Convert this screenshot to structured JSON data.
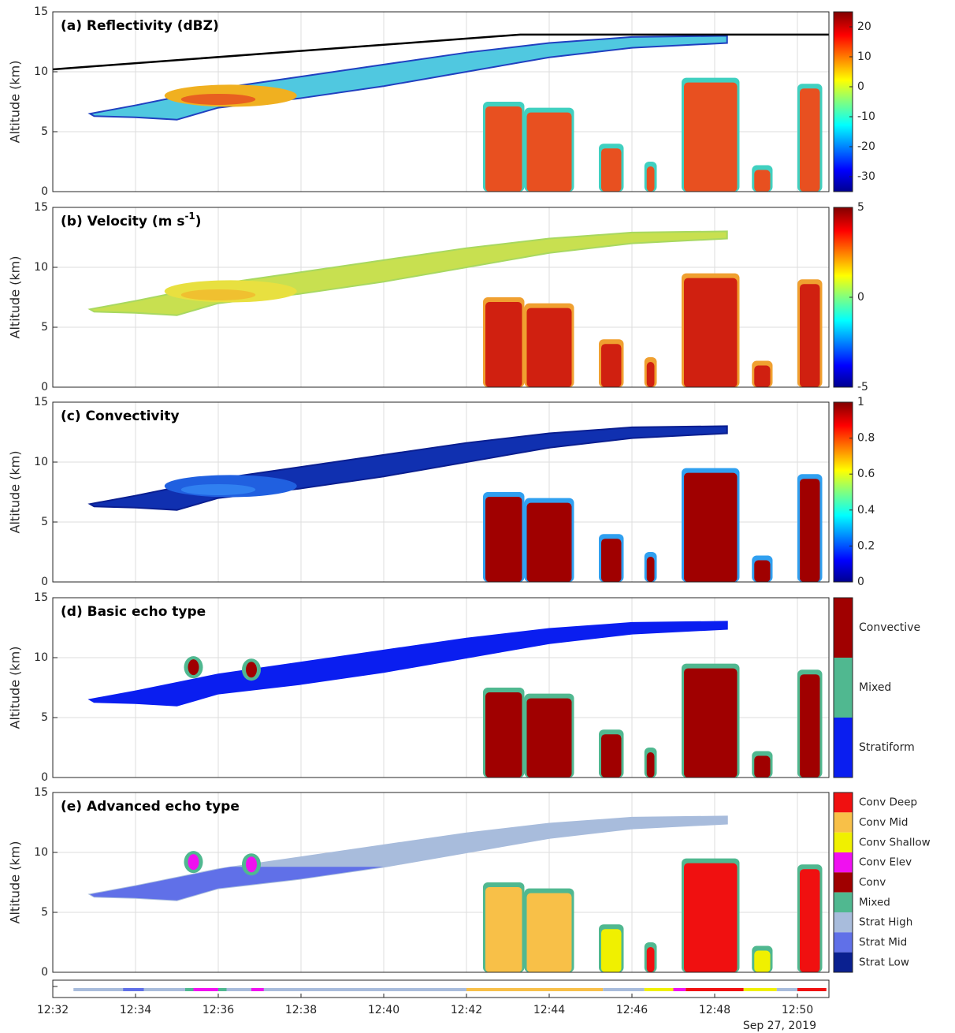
{
  "chart_data": [
    {
      "type": "heatmap",
      "title": "(a) Reflectivity (dBZ)",
      "ylabel": "Altitude (km)",
      "ylim": [
        0,
        15
      ],
      "yticks": [
        0,
        5,
        10,
        15
      ],
      "grid": true,
      "colorbar": {
        "colormap": "jet",
        "clim": [
          -35,
          25
        ],
        "ticks": [
          -30,
          -20,
          -10,
          0,
          10,
          20
        ]
      }
    },
    {
      "type": "heatmap",
      "title": "(b) Velocity (m s",
      "title_superscript": "-1",
      "title_suffix": ")",
      "ylabel": "Altitude (km)",
      "ylim": [
        0,
        15
      ],
      "yticks": [
        0,
        5,
        10,
        15
      ],
      "grid": true,
      "colorbar": {
        "colormap": "jet",
        "clim": [
          -5,
          5
        ],
        "ticks": [
          -5,
          0,
          5
        ]
      }
    },
    {
      "type": "heatmap",
      "title": "(c) Convectivity",
      "ylabel": "Altitude (km)",
      "ylim": [
        0,
        15
      ],
      "yticks": [
        0,
        5,
        10,
        15
      ],
      "grid": true,
      "colorbar": {
        "colormap": "jet",
        "clim": [
          0,
          1
        ],
        "ticks": [
          0,
          0.2,
          0.4,
          0.6,
          0.8,
          1
        ]
      }
    },
    {
      "type": "heatmap",
      "title": "(d) Basic echo type",
      "ylabel": "Altitude (km)",
      "ylim": [
        0,
        15
      ],
      "yticks": [
        0,
        5,
        10,
        15
      ],
      "grid": true,
      "classes": [
        {
          "name": "Convective",
          "color": "#a00000"
        },
        {
          "name": "Mixed",
          "color": "#50b890"
        },
        {
          "name": "Stratiform",
          "color": "#0a1ef0"
        }
      ]
    },
    {
      "type": "heatmap",
      "title": "(e) Advanced echo type",
      "ylabel": "Altitude (km)",
      "ylim": [
        0,
        15
      ],
      "yticks": [
        0,
        5,
        10,
        15
      ],
      "grid": true,
      "classes": [
        {
          "name": "Conv Deep",
          "color": "#f01010"
        },
        {
          "name": "Conv Mid",
          "color": "#f8c048"
        },
        {
          "name": "Conv Shallow",
          "color": "#f0f000"
        },
        {
          "name": "Conv Elev",
          "color": "#f010f0"
        },
        {
          "name": "Conv",
          "color": "#a00000"
        },
        {
          "name": "Mixed",
          "color": "#50b890"
        },
        {
          "name": "Strat High",
          "color": "#a8bcdc"
        },
        {
          "name": "Strat Mid",
          "color": "#6070e8"
        },
        {
          "name": "Strat Low",
          "color": "#0a2090"
        }
      ]
    }
  ],
  "x_axis": {
    "ticks": [
      "12:32",
      "12:34",
      "12:36",
      "12:38",
      "12:40",
      "12:42",
      "12:44",
      "12:46",
      "12:48",
      "12:50"
    ],
    "date": "Sep 27, 2019"
  }
}
